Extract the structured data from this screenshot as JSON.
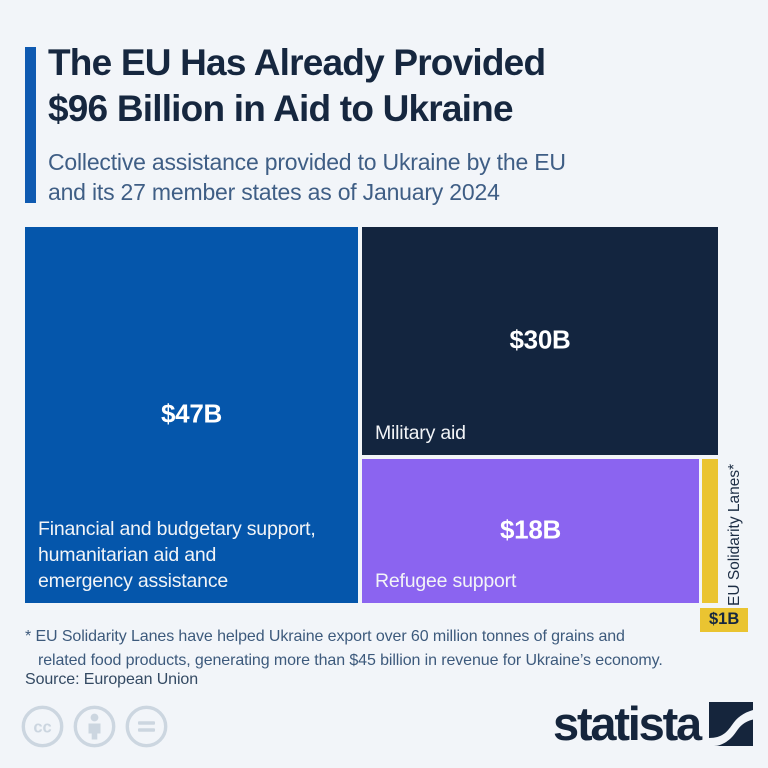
{
  "header": {
    "title_lines": [
      "The EU Has Already Provided",
      "$96 Billion in Aid to Ukraine"
    ],
    "subtitle_lines": [
      "Collective assistance provided to Ukraine by the EU",
      "and its 27 member states as of January 2024"
    ]
  },
  "chart_data": {
    "type": "treemap",
    "title": "The EU Has Already Provided $96 Billion in Aid to Ukraine",
    "subtitle": "Collective assistance provided to Ukraine by the EU and its 27 member states as of January 2024",
    "unit": "billion USD",
    "total_value": 96,
    "segments": [
      {
        "name": "Financial and budgetary support, humanitarian aid and emergency assistance",
        "label_lines": [
          "Financial and budgetary support,",
          "humanitarian aid and",
          "emergency assistance"
        ],
        "value": 47,
        "value_label": "$47B",
        "color": "#0556ab"
      },
      {
        "name": "Military aid",
        "value": 30,
        "value_label": "$30B",
        "color": "#13253f"
      },
      {
        "name": "Refugee support",
        "value": 18,
        "value_label": "$18B",
        "color": "#8b64f0"
      },
      {
        "name": "EU Solidarity Lanes*",
        "value": 1,
        "value_label": "$1B",
        "color": "#eac431"
      }
    ]
  },
  "footnote_lines": [
    "* EU Solidarity Lanes have helped Ukraine export over 60 million tonnes of grains and",
    "related food products, generating more than $45 billion in revenue for Ukraine’s economy."
  ],
  "source": "Source: European Union",
  "footer": {
    "brand": "statista",
    "license_icons": [
      "cc-icon",
      "attribution-icon",
      "no-derivatives-icon"
    ]
  },
  "colors": {
    "background": "#f2f5f9",
    "accent_bar": "#0f5ab1",
    "title": "#16273f",
    "subtitle": "#3f5e85",
    "badge_background": "#eac431",
    "license_icon": "#ccd6e0",
    "logo": "#15253c"
  }
}
